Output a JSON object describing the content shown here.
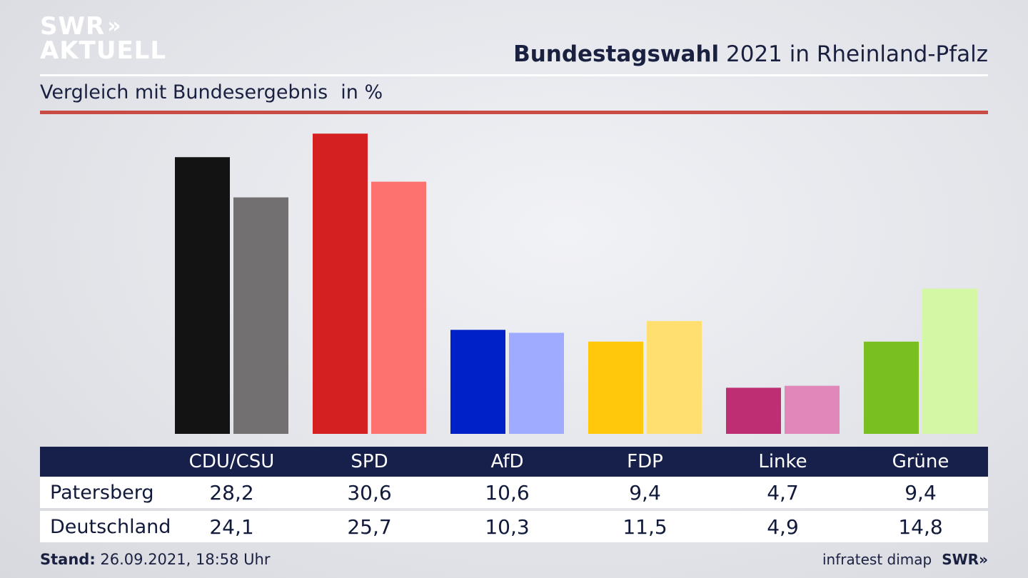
{
  "brand": {
    "logo_line1": "SWR",
    "logo_arrows": "»",
    "logo_line2": "AKTUELL"
  },
  "header": {
    "title_bold": "Bundestagswahl",
    "title_rest": " 2021 in Rheinland-Pfalz",
    "subtitle": "Vergleich mit Bundesergebnis",
    "unit": "in %"
  },
  "colors": {
    "primary": [
      "#131313",
      "#d42020",
      "#0020c8",
      "#ffc80a",
      "#bd2f72",
      "#7abf20"
    ],
    "secondary": [
      "#727070",
      "#fd726e",
      "#9fabff",
      "#ffdf70",
      "#df88b9",
      "#d3f7a5"
    ],
    "header_bg": "#16204a",
    "accent_rule": "#c94b44"
  },
  "chart_data": {
    "type": "bar",
    "categories": [
      "CDU/CSU",
      "SPD",
      "AfD",
      "FDP",
      "Linke",
      "Grüne"
    ],
    "series": [
      {
        "name": "Patersberg",
        "values": [
          28.2,
          30.6,
          10.6,
          9.4,
          4.7,
          9.4
        ]
      },
      {
        "name": "Deutschland",
        "values": [
          24.1,
          25.7,
          10.3,
          11.5,
          4.9,
          14.8
        ]
      }
    ],
    "grid": false,
    "legend": "table-below"
  },
  "table": {
    "row_labels": [
      "Patersberg",
      "Deutschland"
    ],
    "row1": [
      "28,2",
      "30,6",
      "10,6",
      "9,4",
      "4,7",
      "9,4"
    ],
    "row2": [
      "24,1",
      "25,7",
      "10,3",
      "11,5",
      "4,9",
      "14,8"
    ]
  },
  "footer": {
    "stand_label": "Stand:",
    "stand_value": " 26.09.2021, 18:58 Uhr",
    "source": "infratest dimap",
    "swr": "SWR»"
  }
}
